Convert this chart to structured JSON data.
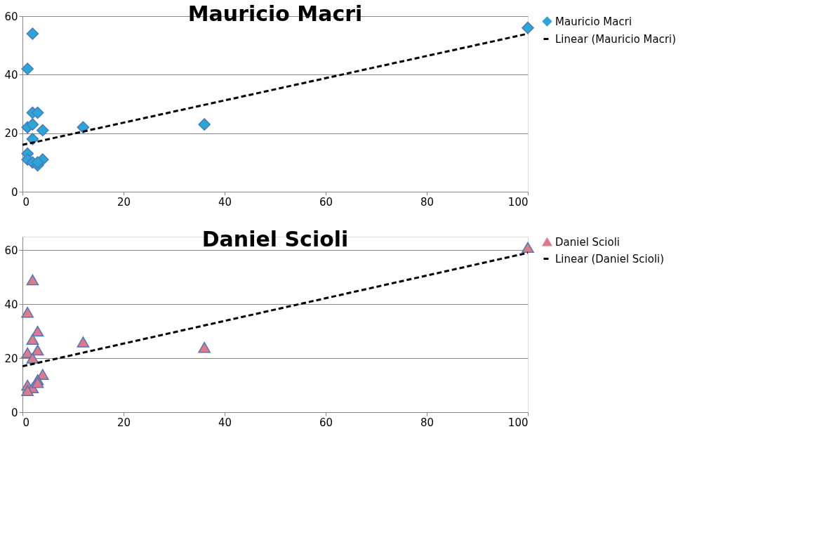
{
  "chart_data": [
    {
      "type": "scatter",
      "title": "Mauricio Macri",
      "xlim": [
        0,
        100
      ],
      "xticks": [
        0,
        20,
        40,
        60,
        80,
        100
      ],
      "ylim": [
        0,
        60
      ],
      "yticks": [
        0,
        20,
        40,
        60
      ],
      "grid": "y",
      "legend": "right",
      "series": [
        {
          "name": "Mauricio Macri",
          "marker": "diamond",
          "color": "#2ba6d8",
          "x": [
            2,
            1,
            2,
            3,
            1,
            2,
            4,
            2,
            1,
            1,
            2,
            3,
            4,
            3,
            12,
            36,
            100
          ],
          "values": [
            54,
            42,
            27,
            27,
            22,
            23,
            21,
            18,
            13,
            11,
            10,
            9,
            11,
            10,
            22,
            23,
            56
          ]
        },
        {
          "name": "Linear (Mauricio Macri)",
          "type": "line",
          "line_style": "dashed",
          "color": "#000000",
          "x": [
            0,
            100
          ],
          "values": [
            16,
            54
          ]
        }
      ]
    },
    {
      "type": "scatter",
      "title": "Daniel Scioli",
      "xlim": [
        0,
        100
      ],
      "xticks": [
        0,
        20,
        40,
        60,
        80,
        100
      ],
      "ylim": [
        0,
        65
      ],
      "yticks": [
        0,
        20,
        40,
        60
      ],
      "grid": "y",
      "legend": "right",
      "series": [
        {
          "name": "Daniel Scioli",
          "marker": "triangle",
          "color": "#e07a8a",
          "x": [
            2,
            1,
            3,
            2,
            3,
            1,
            2,
            4,
            3,
            1,
            2,
            1,
            3,
            12,
            36,
            100
          ],
          "values": [
            49,
            37,
            30,
            27,
            23,
            22,
            20,
            14,
            12,
            10,
            9,
            8,
            11,
            26,
            24,
            61
          ]
        },
        {
          "name": "Linear (Daniel Scioli)",
          "type": "line",
          "line_style": "dashed",
          "color": "#000000",
          "x": [
            0,
            100
          ],
          "values": [
            17,
            59
          ]
        }
      ]
    }
  ]
}
